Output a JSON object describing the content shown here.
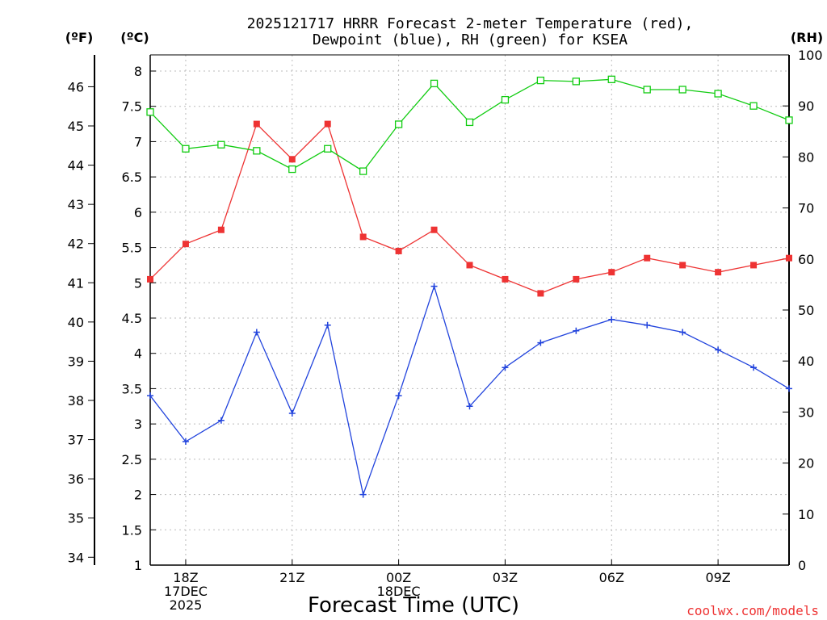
{
  "chart_data": {
    "type": "line",
    "title_lines": [
      "2025121717 HRRR Forecast 2-meter Temperature (red),",
      "Dewpoint (blue), RH (green) for KSEA"
    ],
    "xlabel": "Forecast Time (UTC)",
    "credit": "coolwx.com/models",
    "units": {
      "fahrenheit": "(ºF)",
      "celsius": "(ºC)",
      "rh": "(RH)"
    },
    "x_hours": [
      17,
      18,
      19,
      20,
      21,
      22,
      23,
      24,
      25,
      26,
      27,
      28,
      29,
      30,
      31,
      32,
      33,
      34,
      35
    ],
    "xlim": [
      17,
      35
    ],
    "x_ticks": [
      {
        "hour": 18,
        "lines": [
          "18Z",
          "17DEC",
          "2025"
        ]
      },
      {
        "hour": 21,
        "lines": [
          "21Z"
        ]
      },
      {
        "hour": 24,
        "lines": [
          "00Z",
          "18DEC"
        ]
      },
      {
        "hour": 27,
        "lines": [
          "03Z"
        ]
      },
      {
        "hour": 30,
        "lines": [
          "06Z"
        ]
      },
      {
        "hour": 33,
        "lines": [
          "09Z"
        ]
      }
    ],
    "celsius_axis": {
      "min": 1,
      "max": 8.2,
      "ticks": [
        "1",
        "1.5",
        "2",
        "2.5",
        "3",
        "3.5",
        "4",
        "4.5",
        "5",
        "5.5",
        "6",
        "6.5",
        "7",
        "7.5",
        "8"
      ]
    },
    "fahrenheit_axis": {
      "ticks": [
        "34",
        "35",
        "36",
        "37",
        "38",
        "39",
        "40",
        "41",
        "42",
        "43",
        "44",
        "45",
        "46"
      ]
    },
    "rh_axis": {
      "min": 0,
      "max": 100,
      "ticks": [
        "0",
        "10",
        "20",
        "30",
        "40",
        "50",
        "60",
        "70",
        "80",
        "90",
        "100"
      ]
    },
    "grid": true,
    "series": [
      {
        "name": "Temperature",
        "axis": "celsius",
        "color": "#ee3333",
        "marker": "filled-square",
        "values": [
          5.05,
          5.55,
          5.75,
          7.25,
          6.75,
          7.25,
          5.65,
          5.45,
          5.75,
          5.25,
          5.05,
          4.85,
          5.05,
          5.15,
          5.35,
          5.25,
          5.15,
          5.25,
          5.35
        ]
      },
      {
        "name": "Dewpoint",
        "axis": "celsius",
        "color": "#2244dd",
        "marker": "plus",
        "values": [
          3.4,
          2.75,
          3.05,
          4.3,
          3.15,
          4.4,
          2.0,
          3.4,
          4.95,
          3.25,
          3.8,
          4.15,
          4.32,
          4.48,
          4.4,
          4.3,
          4.05,
          3.8,
          3.5
        ]
      },
      {
        "name": "RH",
        "axis": "rh",
        "color": "#11cc11",
        "marker": "open-square",
        "values": [
          88.8,
          81.6,
          82.4,
          81.2,
          77.6,
          81.6,
          77.2,
          86.4,
          94.4,
          86.8,
          91.2,
          95.0,
          94.8,
          95.2,
          93.2,
          93.2,
          92.4,
          90.0,
          87.2
        ]
      }
    ]
  }
}
